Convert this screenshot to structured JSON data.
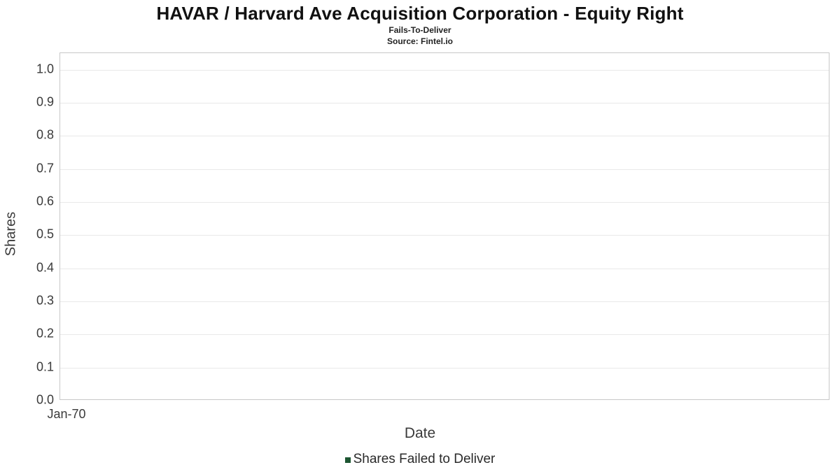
{
  "chart": {
    "title": "HAVAR / Harvard Ave Acquisition Corporation - Equity Right",
    "subtitle": "Fails-To-Deliver",
    "source": "Source: Fintel.io",
    "ylabel": "Shares",
    "xlabel": "Date",
    "x_tick": "Jan-70",
    "legend_label": "Shares Failed to Deliver",
    "legend_color": "#1d5632"
  },
  "chart_data": {
    "type": "bar",
    "title": "HAVAR / Harvard Ave Acquisition Corporation - Equity Right",
    "subtitle": "Fails-To-Deliver",
    "source": "Source: Fintel.io",
    "xlabel": "Date",
    "ylabel": "Shares",
    "categories": [
      "Jan-70"
    ],
    "series": [
      {
        "name": "Shares Failed to Deliver",
        "values": [],
        "color": "#1d5632"
      }
    ],
    "ylim": [
      0.0,
      1.05
    ],
    "yticks": [
      0.0,
      0.1,
      0.2,
      0.3,
      0.4,
      0.5,
      0.6,
      0.7,
      0.8,
      0.9,
      1.0
    ],
    "grid": "horizontal",
    "legend_position": "bottom",
    "notes": "Empty plot area - no data points rendered"
  }
}
